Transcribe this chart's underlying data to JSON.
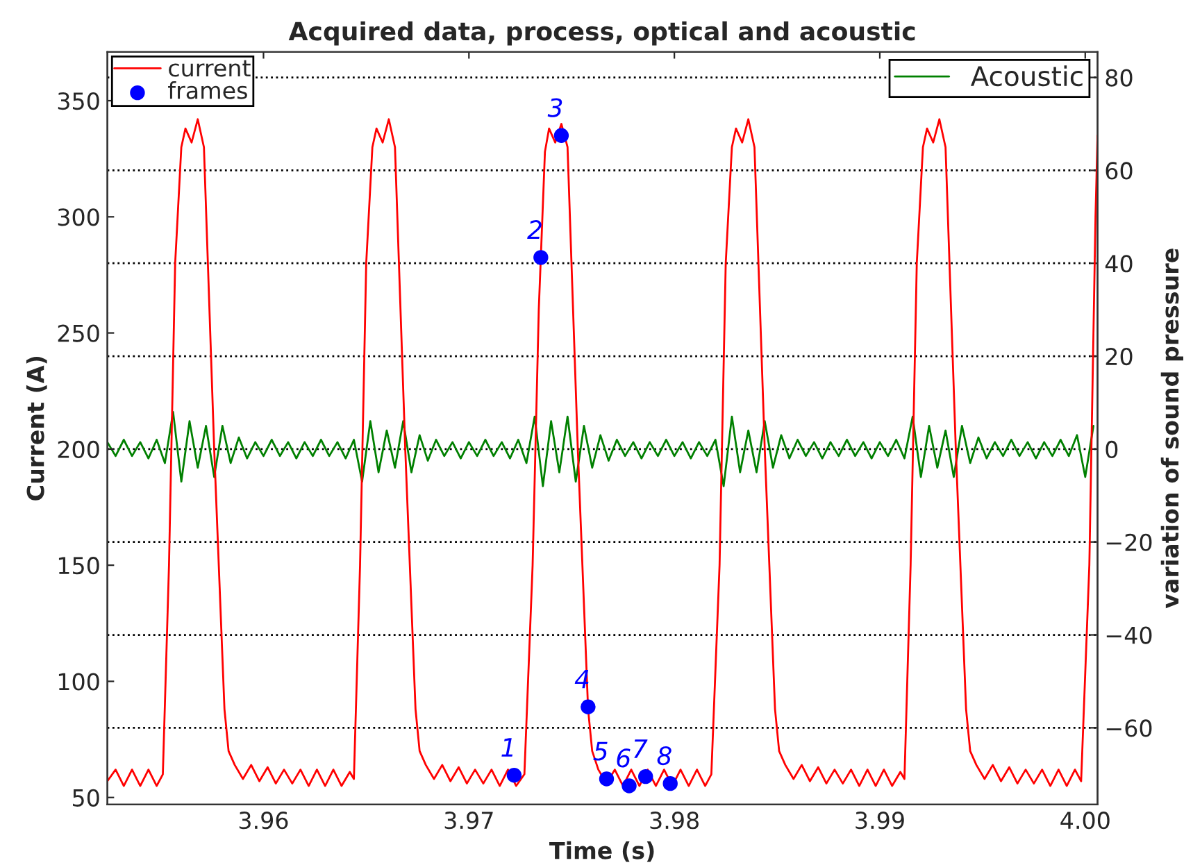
{
  "chart_data": {
    "type": "line",
    "title": "Acquired data, process, optical and acoustic",
    "xlabel": "Time (s)",
    "ylabel": "Current (A)",
    "y2label": "variation of sound pressure",
    "xlim": [
      3.9524,
      4.0006
    ],
    "xticks": [
      3.96,
      3.97,
      3.98,
      3.99,
      {
        "value": 4.0,
        "label": "4.00"
      }
    ],
    "ylim": [
      47,
      371
    ],
    "yticks": [
      50,
      100,
      150,
      200,
      250,
      300,
      350
    ],
    "y2lim": [
      -76.5,
      85.5
    ],
    "y2ticks": [
      {
        "value": -60,
        "label": "−60"
      },
      {
        "value": -40,
        "label": "−40"
      },
      {
        "value": -20,
        "label": "−20"
      },
      0,
      20,
      40,
      60,
      80
    ],
    "grid": "y",
    "legend": "top left",
    "annotations": [
      {
        "text": "1",
        "x": 3.9722,
        "y": 59.6
      },
      {
        "text": "2",
        "x": 3.9735,
        "y": 282.5
      },
      {
        "text": "3",
        "x": 3.9745,
        "y": 335
      },
      {
        "text": "4",
        "x": 3.9758,
        "y": 89
      },
      {
        "text": "5",
        "x": 3.9767,
        "y": 58
      },
      {
        "text": "6",
        "x": 3.9778,
        "y": 55
      },
      {
        "text": "7",
        "x": 3.9786,
        "y": 59
      },
      {
        "text": "8",
        "x": 3.9798,
        "y": 56
      }
    ],
    "series": [
      {
        "name": "current",
        "color": "#ff0000",
        "x": [
          3.9524,
          3.9528,
          3.9532,
          3.9536,
          3.954,
          3.9544,
          3.9548,
          3.9551,
          3.9554,
          3.9557,
          3.956,
          3.9562,
          3.9565,
          3.9568,
          3.9571,
          3.9576,
          3.9581,
          3.9583,
          3.9586,
          3.959,
          3.9594,
          3.9598,
          3.9602,
          3.9606,
          3.961,
          3.9614,
          3.9618,
          3.9622,
          3.9626,
          3.963,
          3.9634,
          3.9638,
          3.9642,
          3.9644,
          3.9647,
          3.965,
          3.9653,
          3.9655,
          3.9658,
          3.9661,
          3.9664,
          3.9669,
          3.9674,
          3.9676,
          3.9679,
          3.9683,
          3.9687,
          3.9691,
          3.9695,
          3.9699,
          3.9703,
          3.9707,
          3.9711,
          3.9715,
          3.9719,
          3.9723,
          3.9727,
          3.9731,
          3.9734,
          3.9737,
          3.9739,
          3.9742,
          3.9745,
          3.9748,
          3.9753,
          3.9758,
          3.976,
          3.9763,
          3.9767,
          3.9771,
          3.9775,
          3.9779,
          3.9783,
          3.9787,
          3.9791,
          3.9795,
          3.9799,
          3.9803,
          3.9807,
          3.9811,
          3.9815,
          3.9818,
          3.9822,
          3.9825,
          3.9828,
          3.983,
          3.9833,
          3.9836,
          3.9839,
          3.9844,
          3.9849,
          3.9851,
          3.9854,
          3.9858,
          3.9862,
          3.9866,
          3.987,
          3.9874,
          3.9878,
          3.9882,
          3.9886,
          3.989,
          3.9894,
          3.9898,
          3.9902,
          3.9906,
          3.991,
          3.9912,
          3.9915,
          3.9918,
          3.9921,
          3.9923,
          3.9926,
          3.9929,
          3.9932,
          3.9937,
          3.9942,
          3.9944,
          3.9947,
          3.9951,
          3.9955,
          3.9959,
          3.9963,
          3.9967,
          3.9971,
          3.9975,
          3.9979,
          3.9983,
          3.9987,
          3.9991,
          3.9995,
          3.9998,
          4.0002,
          4.0005,
          4.0006
        ],
        "values": [
          57,
          62,
          55,
          62,
          55,
          62,
          55,
          60,
          150,
          280,
          330,
          338,
          332,
          342,
          330,
          200,
          88,
          70,
          64,
          58,
          64,
          57,
          63,
          56,
          62,
          56,
          62,
          55,
          62,
          55,
          62,
          55,
          61,
          58,
          150,
          280,
          330,
          338,
          332,
          342,
          330,
          200,
          88,
          70,
          64,
          58,
          64,
          57,
          63,
          56,
          62,
          56,
          62,
          55,
          62,
          55,
          60,
          150,
          260,
          328,
          338,
          332,
          340,
          330,
          200,
          88,
          70,
          62,
          56,
          62,
          55,
          62,
          55,
          62,
          55,
          62,
          55,
          62,
          55,
          62,
          55,
          60,
          150,
          280,
          330,
          338,
          332,
          342,
          330,
          200,
          88,
          70,
          64,
          58,
          64,
          57,
          63,
          56,
          62,
          56,
          62,
          55,
          62,
          55,
          62,
          55,
          61,
          58,
          150,
          280,
          330,
          338,
          332,
          342,
          330,
          200,
          88,
          70,
          64,
          58,
          64,
          57,
          63,
          56,
          62,
          56,
          62,
          55,
          62,
          55,
          62,
          57,
          150,
          300,
          335
        ]
      },
      {
        "name": "frames",
        "type": "scatter",
        "color": "#0000ff",
        "marker": "circle",
        "x": [
          3.9722,
          3.9735,
          3.9745,
          3.9758,
          3.9767,
          3.9778,
          3.9786,
          3.9798
        ],
        "values": [
          59.6,
          282.5,
          335,
          89,
          58,
          55,
          59,
          56
        ]
      },
      {
        "name": "Acoustic",
        "axis": "y2",
        "color": "#008000",
        "x": [
          3.9524,
          3.9528,
          3.9532,
          3.9536,
          3.954,
          3.9544,
          3.9548,
          3.9552,
          3.9556,
          3.956,
          3.9564,
          3.9568,
          3.9572,
          3.9576,
          3.958,
          3.9584,
          3.9588,
          3.9592,
          3.9596,
          3.96,
          3.9604,
          3.9608,
          3.9612,
          3.9616,
          3.962,
          3.9624,
          3.9628,
          3.9632,
          3.9636,
          3.964,
          3.9644,
          3.9648,
          3.9652,
          3.9656,
          3.966,
          3.9664,
          3.9668,
          3.9672,
          3.9676,
          3.968,
          3.9684,
          3.9688,
          3.9692,
          3.9696,
          3.97,
          3.9704,
          3.9708,
          3.9712,
          3.9716,
          3.972,
          3.9724,
          3.9728,
          3.9732,
          3.9736,
          3.974,
          3.9744,
          3.9748,
          3.9752,
          3.9756,
          3.976,
          3.9764,
          3.9768,
          3.9772,
          3.9776,
          3.978,
          3.9784,
          3.9788,
          3.9792,
          3.9796,
          3.98,
          3.9804,
          3.9808,
          3.9812,
          3.9816,
          3.982,
          3.9824,
          3.9828,
          3.9832,
          3.9836,
          3.984,
          3.9844,
          3.9848,
          3.9852,
          3.9856,
          3.986,
          3.9864,
          3.9868,
          3.9872,
          3.9876,
          3.988,
          3.9884,
          3.9888,
          3.9892,
          3.9896,
          3.99,
          3.9904,
          3.9908,
          3.9912,
          3.9916,
          3.992,
          3.9924,
          3.9928,
          3.9932,
          3.9936,
          3.994,
          3.9944,
          3.9948,
          3.9952,
          3.9956,
          3.996,
          3.9964,
          3.9968,
          3.9972,
          3.9976,
          3.998,
          3.9984,
          3.9988,
          3.9992,
          3.9996,
          4.0,
          4.0004
        ],
        "values": [
          1.5,
          -1.5,
          2,
          -1.5,
          1.5,
          -2,
          2,
          -3,
          8,
          -7,
          6,
          -4,
          5,
          -6,
          5,
          -3,
          2.5,
          -2,
          1.5,
          -1.5,
          2,
          -1.5,
          1.5,
          -2,
          1.5,
          -1.5,
          2,
          -1.5,
          1.5,
          -2,
          2,
          -7,
          6,
          -5,
          4,
          -4,
          6,
          -5,
          3,
          -2.5,
          2,
          -1.5,
          1.5,
          -2,
          1.5,
          -1.5,
          2,
          -1.5,
          1.5,
          -2,
          2,
          -3,
          7,
          -8,
          6,
          -5,
          7,
          -7,
          5,
          -4,
          3,
          -2.5,
          2,
          -1.5,
          1.5,
          -2,
          1.5,
          -1.5,
          2,
          -1.5,
          1.5,
          -2,
          1.5,
          -1.5,
          2,
          -8,
          7,
          -5,
          4,
          -5,
          6,
          -4,
          3,
          -2,
          2,
          -1.5,
          1.5,
          -2,
          1.5,
          -1.5,
          2,
          -1.5,
          1.5,
          -2,
          1.5,
          -1.5,
          2,
          -2,
          7,
          -6,
          5,
          -4,
          4,
          -6,
          5,
          -3,
          2.5,
          -2,
          1.5,
          -1.5,
          2,
          -1.5,
          1.5,
          -2,
          1.5,
          -1.5,
          2,
          -1.5,
          3,
          -6,
          5
        ]
      }
    ]
  }
}
